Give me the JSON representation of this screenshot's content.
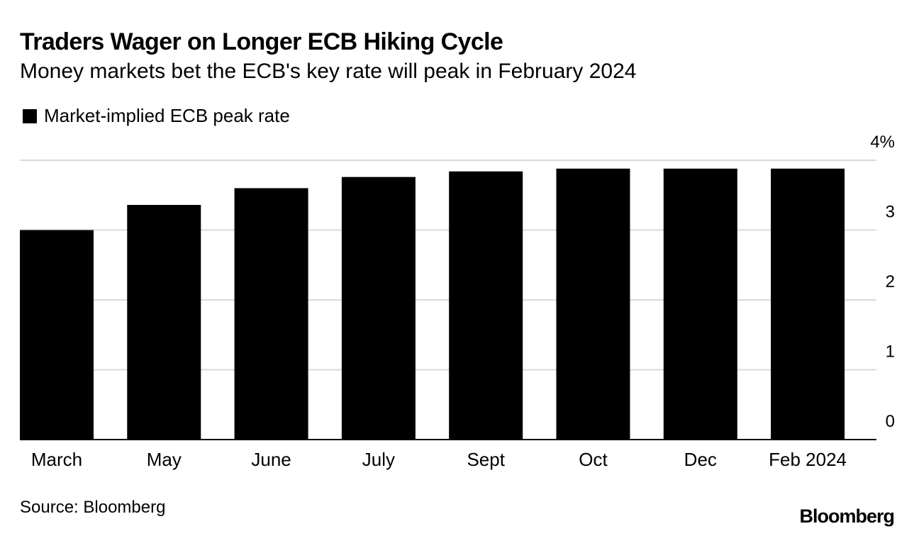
{
  "title": "Traders Wager on Longer ECB Hiking Cycle",
  "subtitle": "Money markets bet the ECB's key rate will peak in February 2024",
  "legend": {
    "label": "Market-implied ECB peak rate"
  },
  "source": "Source: Bloomberg",
  "logo": "Bloomberg",
  "colors": {
    "bar": "#000000",
    "grid": "#d9d9d9",
    "axis": "#000000",
    "text": "#000000"
  },
  "chart_data": {
    "type": "bar",
    "title": "Traders Wager on Longer ECB Hiking Cycle",
    "subtitle": "Money markets bet the ECB's key rate will peak in February 2024",
    "categories": [
      "March",
      "May",
      "June",
      "July",
      "Sept",
      "Oct",
      "Dec",
      "Feb 2024"
    ],
    "series": [
      {
        "name": "Market-implied ECB peak rate",
        "values": [
          3.0,
          3.36,
          3.6,
          3.76,
          3.84,
          3.88,
          3.88,
          3.88
        ]
      }
    ],
    "xlabel": "",
    "ylabel": "",
    "ylim": [
      0,
      4
    ],
    "yticks": [
      0,
      1,
      2,
      3,
      4
    ],
    "ytick_labels": [
      "0",
      "1",
      "2",
      "3",
      "4%"
    ],
    "grid": true,
    "legend_position": "top-left",
    "y_axis_side": "right"
  }
}
